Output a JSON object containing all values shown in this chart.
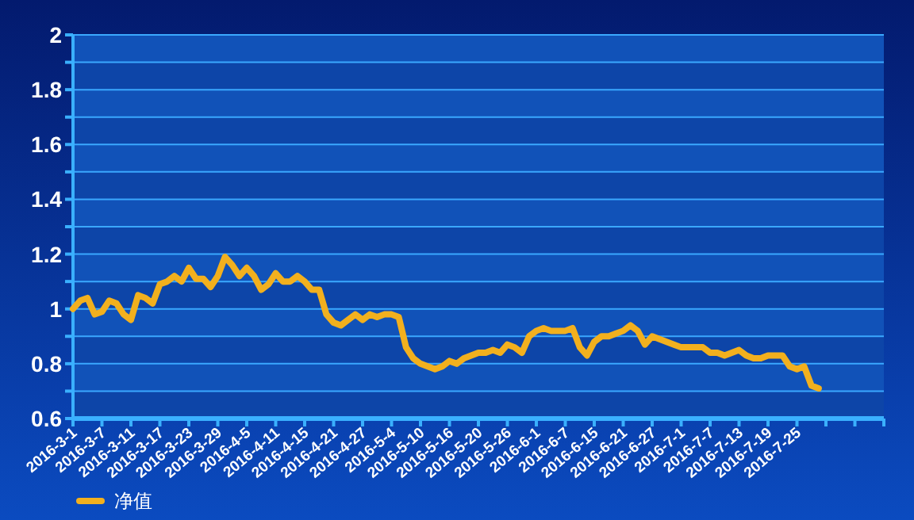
{
  "chart_data": {
    "type": "line",
    "categories": [
      "2016-3-1",
      null,
      null,
      null,
      "2016-3-7",
      null,
      null,
      null,
      "2016-3-11",
      null,
      null,
      null,
      "2016-3-17",
      null,
      null,
      null,
      "2016-3-23",
      null,
      null,
      null,
      "2016-3-29",
      null,
      null,
      null,
      "2016-4-5",
      null,
      null,
      null,
      "2016-4-11",
      null,
      null,
      null,
      "2016-4-15",
      null,
      null,
      null,
      "2016-4-21",
      null,
      null,
      null,
      "2016-4-27",
      null,
      null,
      null,
      "2016-5-4",
      null,
      null,
      null,
      "2016-5-10",
      null,
      null,
      null,
      "2016-5-16",
      null,
      null,
      null,
      "2016-5-20",
      null,
      null,
      null,
      "2016-5-26",
      null,
      null,
      null,
      "2016-6-1",
      null,
      null,
      null,
      "2016-6-7",
      null,
      null,
      null,
      "2016-6-15",
      null,
      null,
      null,
      "2016-6-21",
      null,
      null,
      null,
      "2016-6-27",
      null,
      null,
      null,
      "2016-7-1",
      null,
      null,
      null,
      "2016-7-7",
      null,
      null,
      null,
      "2016-7-13",
      null,
      null,
      null,
      "2016-7-19",
      null,
      null,
      null,
      "2016-7-25",
      null,
      null,
      null,
      null,
      null,
      null,
      null,
      null,
      null,
      null,
      null,
      null
    ],
    "series": [
      {
        "name": "净值",
        "color": "#f2b01e",
        "values": [
          1.0,
          1.03,
          1.04,
          0.98,
          0.99,
          1.03,
          1.02,
          0.98,
          0.96,
          1.05,
          1.04,
          1.02,
          1.09,
          1.1,
          1.12,
          1.1,
          1.15,
          1.11,
          1.11,
          1.08,
          1.12,
          1.19,
          1.16,
          1.12,
          1.15,
          1.12,
          1.07,
          1.09,
          1.13,
          1.1,
          1.1,
          1.12,
          1.1,
          1.07,
          1.07,
          0.98,
          0.95,
          0.94,
          0.96,
          0.98,
          0.96,
          0.98,
          0.97,
          0.98,
          0.98,
          0.97,
          0.86,
          0.82,
          0.8,
          0.79,
          0.78,
          0.79,
          0.81,
          0.8,
          0.82,
          0.83,
          0.84,
          0.84,
          0.85,
          0.84,
          0.87,
          0.86,
          0.84,
          0.9,
          0.92,
          0.93,
          0.92,
          0.92,
          0.92,
          0.93,
          0.86,
          0.83,
          0.88,
          0.9,
          0.9,
          0.91,
          0.92,
          0.94,
          0.92,
          0.87,
          0.9,
          0.89,
          0.88,
          0.87,
          0.86,
          0.86,
          0.86,
          0.86,
          0.84,
          0.84,
          0.83,
          0.84,
          0.85,
          0.83,
          0.82,
          0.82,
          0.83,
          0.83,
          0.83,
          0.79,
          0.78,
          0.79,
          0.72,
          0.71,
          null,
          null,
          null,
          null,
          null,
          null,
          null,
          null,
          null
        ]
      }
    ],
    "ylim": [
      0.6,
      2
    ],
    "yticks": [
      {
        "value": 0.6,
        "label": "0.6"
      },
      {
        "value": 0.7,
        "label": null
      },
      {
        "value": 0.8,
        "label": "0.8"
      },
      {
        "value": 0.9,
        "label": null
      },
      {
        "value": 1,
        "label": "1"
      },
      {
        "value": 1.1,
        "label": null
      },
      {
        "value": 1.2,
        "label": "1.2"
      },
      {
        "value": 1.3,
        "label": null
      },
      {
        "value": 1.4,
        "label": "1.4"
      },
      {
        "value": 1.5,
        "label": null
      },
      {
        "value": 1.6,
        "label": "1.6"
      },
      {
        "value": 1.7,
        "label": null
      },
      {
        "value": 1.8,
        "label": "1.8"
      },
      {
        "value": 1.9,
        "label": null
      },
      {
        "value": 2,
        "label": "2"
      }
    ],
    "grid": "y",
    "legend": "bottom left",
    "marker": "none",
    "line_style": "solid"
  }
}
